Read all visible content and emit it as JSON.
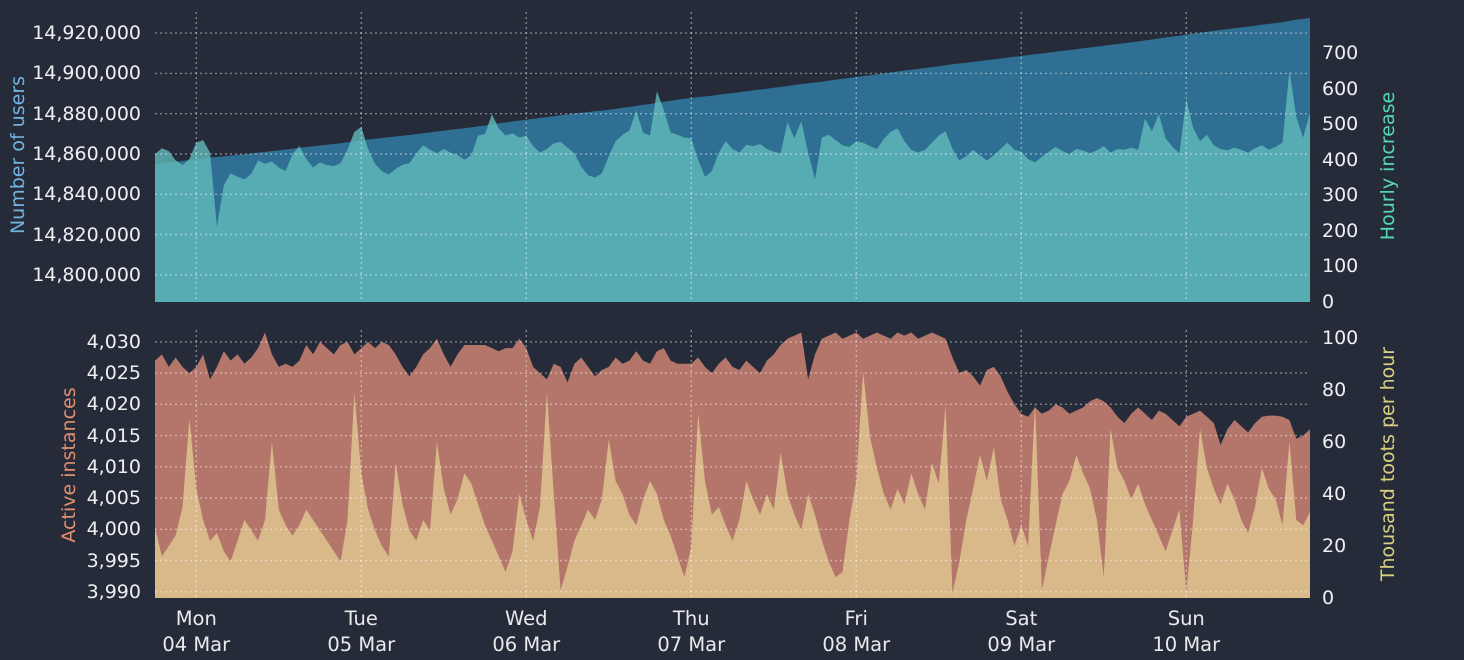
{
  "colors": {
    "background": "#262b3a",
    "tick_text": "#edeff1",
    "gridline": "#ffffff",
    "users_area": "#2e6f93",
    "hourly_increase_area": "#57abb2",
    "instances_area": "#b4766b",
    "toots_area": "#d9ba8b"
  },
  "x_axis": {
    "n_points": 169,
    "grid_indices": [
      6,
      30,
      54,
      78,
      102,
      126,
      150
    ],
    "labels": [
      {
        "index": 6,
        "day": "Mon",
        "date": "04 Mar"
      },
      {
        "index": 30,
        "day": "Tue",
        "date": "05 Mar"
      },
      {
        "index": 54,
        "day": "Wed",
        "date": "06 Mar"
      },
      {
        "index": 78,
        "day": "Thu",
        "date": "07 Mar"
      },
      {
        "index": 102,
        "day": "Fri",
        "date": "08 Mar"
      },
      {
        "index": 126,
        "day": "Sat",
        "date": "09 Mar"
      },
      {
        "index": 150,
        "day": "Sun",
        "date": "10 Mar"
      }
    ]
  },
  "chart_data": [
    {
      "type": "area",
      "position": "top",
      "grid": true,
      "x_resolution": "hourly, 7 days (Mon 04 Mar - Sun 10 Mar)",
      "left_axis": {
        "title": "Number of users",
        "title_color": "#74b3df",
        "range": [
          14786500,
          14930500
        ],
        "ticks": [
          {
            "v": 14920000,
            "label": "14,920,000"
          },
          {
            "v": 14900000,
            "label": "14,900,000"
          },
          {
            "v": 14880000,
            "label": "14,880,000"
          },
          {
            "v": 14860000,
            "label": "14,860,000"
          },
          {
            "v": 14840000,
            "label": "14,840,000"
          },
          {
            "v": 14820000,
            "label": "14,820,000"
          },
          {
            "v": 14800000,
            "label": "14,800,000"
          }
        ]
      },
      "right_axis": {
        "title": "Hourly increase",
        "title_color": "#55d8b4",
        "range": [
          0,
          815
        ],
        "ticks": [
          {
            "v": 700,
            "label": "700"
          },
          {
            "v": 600,
            "label": "600"
          },
          {
            "v": 500,
            "label": "500"
          },
          {
            "v": 400,
            "label": "400"
          },
          {
            "v": 300,
            "label": "300"
          },
          {
            "v": 200,
            "label": "200"
          },
          {
            "v": 100,
            "label": "100"
          },
          {
            "v": 0,
            "label": "0"
          }
        ]
      },
      "series": [
        {
          "name": "Number of users",
          "axis": "left",
          "color": "#2e6f93",
          "opacity": 1,
          "derive": "cumulative",
          "start": 14854500,
          "source": "Hourly increase"
        },
        {
          "name": "Hourly increase",
          "axis": "right",
          "color": "#61baba",
          "opacity": 0.8,
          "values": [
            415,
            432,
            424,
            398,
            385,
            402,
            448,
            455,
            420,
            212,
            328,
            362,
            352,
            345,
            360,
            398,
            388,
            395,
            378,
            368,
            415,
            438,
            402,
            378,
            392,
            385,
            382,
            390,
            428,
            478,
            492,
            430,
            388,
            368,
            358,
            374,
            386,
            390,
            418,
            440,
            428,
            418,
            430,
            420,
            413,
            400,
            412,
            468,
            472,
            528,
            488,
            468,
            474,
            462,
            468,
            438,
            420,
            430,
            446,
            450,
            434,
            418,
            380,
            356,
            350,
            362,
            410,
            452,
            470,
            482,
            538,
            476,
            468,
            592,
            540,
            476,
            470,
            462,
            460,
            400,
            352,
            368,
            420,
            452,
            430,
            420,
            442,
            438,
            444,
            430,
            422,
            418,
            505,
            460,
            508,
            420,
            345,
            462,
            470,
            455,
            440,
            436,
            452,
            448,
            438,
            430,
            458,
            478,
            488,
            452,
            428,
            420,
            428,
            448,
            468,
            480,
            430,
            398,
            410,
            428,
            412,
            398,
            412,
            430,
            448,
            428,
            422,
            402,
            392,
            408,
            422,
            436,
            424,
            416,
            430,
            426,
            418,
            426,
            438,
            420,
            430,
            428,
            434,
            428,
            515,
            480,
            528,
            460,
            436,
            418,
            570,
            490,
            452,
            470,
            440,
            430,
            426,
            434,
            428,
            420,
            432,
            440,
            428,
            436,
            448,
            652,
            520,
            462,
            532
          ]
        }
      ]
    },
    {
      "type": "area",
      "position": "bottom",
      "grid": true,
      "x_resolution": "hourly, 7 days (Mon 04 Mar - Sun 10 Mar)",
      "left_axis": {
        "title": "Active instances",
        "title_color": "#e28f6e",
        "range": [
          3989,
          4031.9
        ],
        "ticks": [
          {
            "v": 4030,
            "label": "4,030"
          },
          {
            "v": 4025,
            "label": "4,025"
          },
          {
            "v": 4020,
            "label": "4,020"
          },
          {
            "v": 4015,
            "label": "4,015"
          },
          {
            "v": 4010,
            "label": "4,010"
          },
          {
            "v": 4005,
            "label": "4,005"
          },
          {
            "v": 4000,
            "label": "4,000"
          },
          {
            "v": 3995,
            "label": "3,995"
          },
          {
            "v": 3990,
            "label": "3,990"
          }
        ]
      },
      "right_axis": {
        "title": "Thousand toots per hour",
        "title_color": "#d9d07f",
        "range": [
          0,
          103.1
        ],
        "ticks": [
          {
            "v": 100,
            "label": "100"
          },
          {
            "v": 80,
            "label": "80"
          },
          {
            "v": 60,
            "label": "60"
          },
          {
            "v": 40,
            "label": "40"
          },
          {
            "v": 20,
            "label": "20"
          },
          {
            "v": 0,
            "label": "0"
          }
        ]
      },
      "series": [
        {
          "name": "Active instances",
          "axis": "left",
          "color": "#b4766b",
          "opacity": 1,
          "values": [
            4027,
            4028,
            4026,
            4027.5,
            4026,
            4025,
            4026,
            4028,
            4024,
            4026,
            4028.5,
            4027,
            4028,
            4026.5,
            4027.5,
            4029,
            4031.5,
            4028,
            4026,
            4026.5,
            4026,
            4027,
            4029.5,
            4028,
            4030,
            4029,
            4028,
            4029.5,
            4030,
            4028,
            4029,
            4030,
            4029,
            4030,
            4029.5,
            4028,
            4026,
            4024.5,
            4026,
            4028,
            4029,
            4030.5,
            4028,
            4026,
            4028,
            4029.5,
            4029.5,
            4029.5,
            4029.5,
            4029,
            4028.5,
            4029,
            4029,
            4030.5,
            4029,
            4026,
            4025,
            4024,
            4026.5,
            4026,
            4023.5,
            4026.5,
            4027.5,
            4026,
            4024.5,
            4025.5,
            4026,
            4027.5,
            4026.5,
            4027,
            4028.5,
            4027,
            4026.5,
            4028.5,
            4029,
            4027,
            4026.5,
            4026.5,
            4026.5,
            4027.5,
            4026,
            4025,
            4026.5,
            4027.5,
            4026,
            4025.5,
            4027,
            4026,
            4025,
            4027,
            4028,
            4029.5,
            4030.5,
            4031,
            4031.5,
            4024,
            4028,
            4030.5,
            4031,
            4031.5,
            4030.5,
            4031,
            4031.5,
            4030.5,
            4031,
            4031.5,
            4031,
            4030.5,
            4031.5,
            4031,
            4031.5,
            4030.5,
            4031,
            4031.5,
            4031,
            4030.5,
            4027.5,
            4025,
            4025.5,
            4024.5,
            4023,
            4025.5,
            4026,
            4024.5,
            4022,
            4020,
            4018.5,
            4018,
            4019.5,
            4018.5,
            4019,
            4020,
            4019.5,
            4018.5,
            4019,
            4019.5,
            4020.5,
            4021,
            4020.5,
            4019.5,
            4018,
            4017,
            4018.5,
            4019.5,
            4018.5,
            4017.5,
            4019,
            4018.5,
            4017.5,
            4016.5,
            4018,
            4018.5,
            4019,
            4018,
            4017,
            4013.5,
            4016,
            4017.5,
            4016.5,
            4015.5,
            4017,
            4018,
            4018.2,
            4018.2,
            4018,
            4017.5,
            4014.5,
            4015,
            4016
          ]
        },
        {
          "name": "Thousand toots per hour",
          "axis": "right",
          "color": "#dfc68f",
          "opacity": 0.85,
          "values": [
            27,
            16,
            20,
            24,
            35,
            69,
            42,
            30,
            22,
            25,
            18,
            14,
            22,
            30,
            26,
            22,
            30,
            60,
            34,
            28,
            24,
            28,
            34,
            30,
            26,
            22,
            18,
            14,
            30,
            79,
            48,
            34,
            26,
            20,
            16,
            52,
            36,
            26,
            22,
            30,
            26,
            60,
            42,
            32,
            38,
            48,
            44,
            36,
            28,
            22,
            16,
            10,
            18,
            40,
            30,
            22,
            35,
            79,
            40,
            3,
            12,
            22,
            28,
            34,
            30,
            38,
            61,
            45,
            40,
            32,
            28,
            38,
            45,
            40,
            30,
            24,
            16,
            8,
            20,
            71,
            45,
            32,
            35,
            28,
            22,
            30,
            45,
            38,
            32,
            40,
            34,
            56,
            40,
            32,
            26,
            40,
            32,
            22,
            14,
            8,
            10,
            30,
            45,
            87,
            62,
            50,
            40,
            34,
            42,
            36,
            48,
            40,
            34,
            52,
            44,
            74,
            2,
            14,
            30,
            42,
            55,
            45,
            58,
            38,
            30,
            20,
            28,
            20,
            75,
            3,
            16,
            28,
            40,
            45,
            55,
            48,
            42,
            30,
            8,
            65,
            50,
            45,
            38,
            44,
            36,
            30,
            24,
            18,
            26,
            34,
            2,
            30,
            65,
            50,
            42,
            36,
            44,
            38,
            30,
            25,
            35,
            50,
            42,
            38,
            28,
            60,
            30,
            28,
            33
          ]
        }
      ]
    }
  ]
}
